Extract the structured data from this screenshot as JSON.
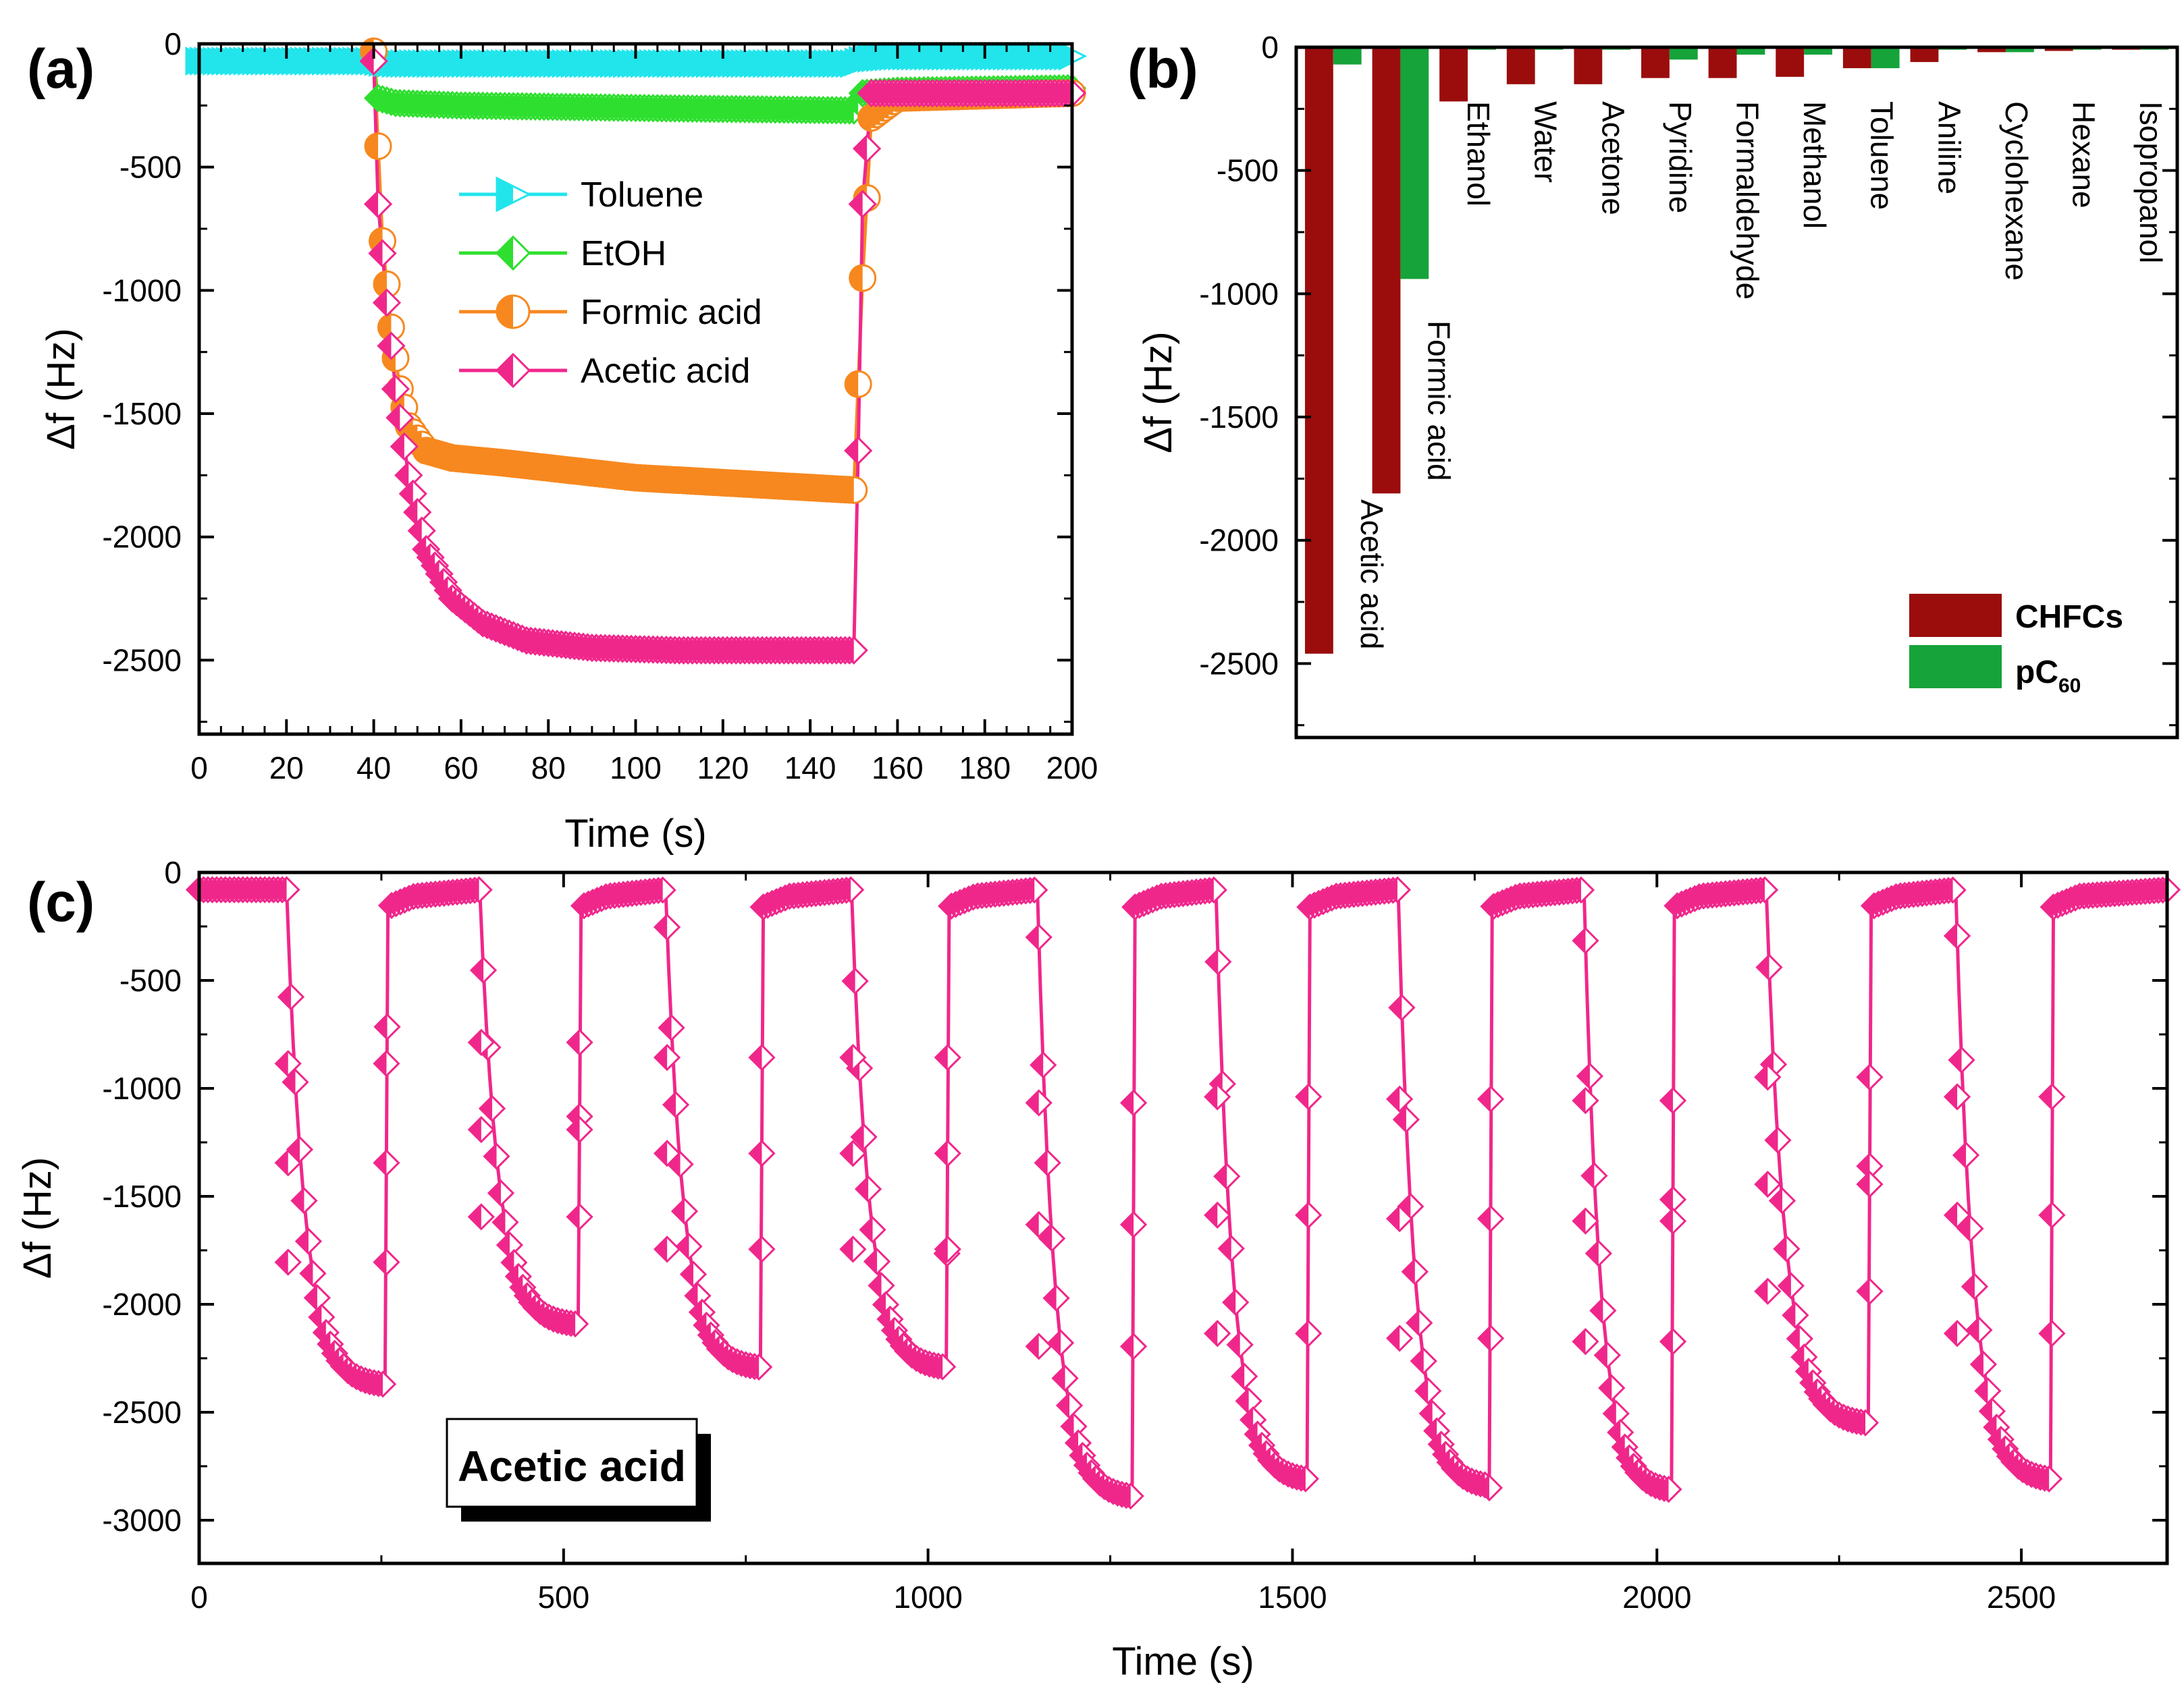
{
  "chart_data": [
    {
      "panel": "(a)",
      "type": "line",
      "xlabel": "Time (s)",
      "ylabel": "Δf (Hz)",
      "xlim": [
        0,
        200
      ],
      "ylim": [
        -2800,
        0
      ],
      "xticks": [
        0,
        20,
        40,
        60,
        80,
        100,
        120,
        140,
        160,
        180,
        200
      ],
      "yticks": [
        0,
        -500,
        -1000,
        -1500,
        -2000,
        -2500
      ],
      "legend": [
        "Toluene",
        "EtOH",
        "Formic acid",
        "Acetic acid"
      ],
      "series": [
        {
          "name": "Toluene",
          "color": "#22e5ec",
          "x": [
            0,
            40,
            42,
            45,
            60,
            100,
            150,
            153,
            160,
            200
          ],
          "y": [
            -70,
            -70,
            -75,
            -80,
            -80,
            -80,
            -80,
            -60,
            -50,
            -50
          ]
        },
        {
          "name": "EtOH",
          "color": "#2fdf2f",
          "x": [
            0,
            40,
            41,
            45,
            60,
            100,
            150,
            152,
            160,
            200
          ],
          "y": [
            -70,
            -70,
            -220,
            -240,
            -250,
            -260,
            -270,
            -200,
            -190,
            -180
          ]
        },
        {
          "name": "Formic acid",
          "color": "#f7881f",
          "x": [
            0,
            40,
            42,
            44,
            46,
            48,
            52,
            58,
            70,
            100,
            140,
            150,
            152,
            154,
            160,
            200
          ],
          "y": [
            -30,
            -30,
            -800,
            -1150,
            -1400,
            -1550,
            -1650,
            -1680,
            -1700,
            -1760,
            -1800,
            -1810,
            -950,
            -300,
            -220,
            -200
          ]
        },
        {
          "name": "Acetic acid",
          "color": "#f0278b",
          "x": [
            0,
            40,
            41,
            43,
            45,
            48,
            52,
            58,
            65,
            75,
            90,
            110,
            140,
            150,
            151,
            152,
            154,
            160,
            200
          ],
          "y": [
            -70,
            -70,
            -650,
            -1050,
            -1400,
            -1750,
            -2050,
            -2250,
            -2350,
            -2420,
            -2450,
            -2460,
            -2460,
            -2460,
            -1650,
            -650,
            -200,
            -200,
            -200
          ]
        }
      ]
    },
    {
      "panel": "(b)",
      "type": "bar",
      "ylabel": "Δf (Hz)",
      "ylim": [
        -2800,
        0
      ],
      "yticks": [
        0,
        -500,
        -1000,
        -1500,
        -2000,
        -2500
      ],
      "categories": [
        "Acetic acid",
        "Formic acid",
        "Ethanol",
        "Water",
        "Acetone",
        "Pyridine",
        "Formaldehyde",
        "Methanol",
        "Toluene",
        "Aniline",
        "Cyclohexane",
        "Hexane",
        "Isopropanol"
      ],
      "series": [
        {
          "name": "CHFCs",
          "color": "#9b0d0d",
          "values": [
            -2460,
            -1810,
            -220,
            -150,
            -150,
            -125,
            -125,
            -120,
            -85,
            -60,
            -20,
            -15,
            -10
          ]
        },
        {
          "name": "pC60",
          "color": "#16a33a",
          "values": [
            -70,
            -940,
            -10,
            -10,
            -10,
            -50,
            -30,
            -30,
            -85,
            -10,
            -20,
            -10,
            -10
          ]
        }
      ],
      "legend": {
        "labels": [
          "CHFCs",
          "pC"
        ],
        "subscript": "60",
        "placement": "bottom-right"
      }
    },
    {
      "panel": "(c)",
      "type": "line",
      "xlabel": "Time (s)",
      "ylabel": "Δf (Hz)",
      "xlim": [
        0,
        2700
      ],
      "ylim": [
        -3200,
        0
      ],
      "xticks": [
        0,
        500,
        1000,
        1500,
        2000,
        2500
      ],
      "yticks": [
        0,
        -500,
        -1000,
        -1500,
        -2000,
        -2500,
        -3000
      ],
      "annotation": "Acetic acid",
      "series_color": "#f0278b",
      "cycles": [
        {
          "on": 120,
          "off": 255,
          "min": -2380
        },
        {
          "on": 385,
          "off": 520,
          "min": -2100
        },
        {
          "on": 640,
          "off": 770,
          "min": -2300
        },
        {
          "on": 895,
          "off": 1025,
          "min": -2300
        },
        {
          "on": 1150,
          "off": 1280,
          "min": -2900
        },
        {
          "on": 1395,
          "off": 1520,
          "min": -2820
        },
        {
          "on": 1645,
          "off": 1770,
          "min": -2850
        },
        {
          "on": 1900,
          "off": 2020,
          "min": -2870
        },
        {
          "on": 2150,
          "off": 2290,
          "min": -2560
        },
        {
          "on": 2410,
          "off": 2540,
          "min": -2820
        }
      ],
      "baseline": -80
    }
  ]
}
